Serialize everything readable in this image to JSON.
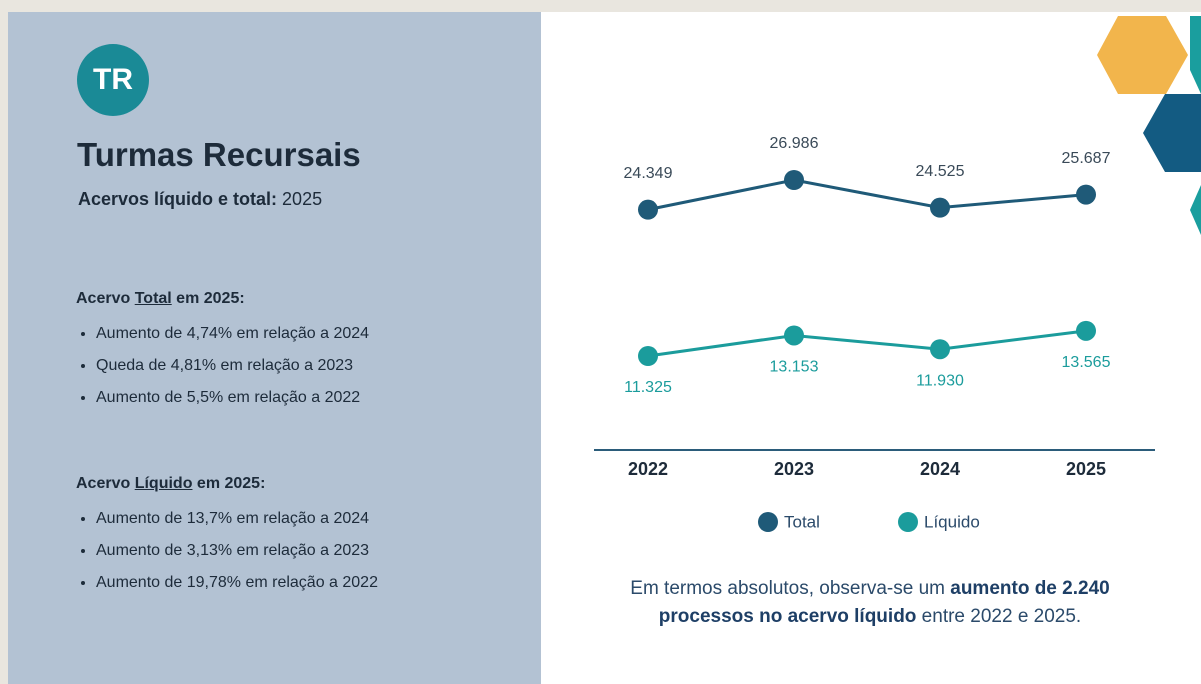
{
  "badge": "TR",
  "title": "Turmas Recursais",
  "subtitle": {
    "label": "Acervos líquido e total:",
    "year": "2025"
  },
  "sections": [
    {
      "heading": [
        "Acervo ",
        "Total",
        " em 2025:"
      ],
      "items": [
        "Aumento de 4,74% em relação a 2024",
        "Queda de 4,81% em relação a 2023",
        "Aumento de 5,5% em relação a 2022"
      ]
    },
    {
      "heading": [
        "Acervo ",
        "Líquido",
        " em 2025:"
      ],
      "items": [
        "Aumento de 13,7% em relação a 2024",
        "Aumento de 3,13% em relação a 2023",
        "Aumento de 19,78% em relação a 2022"
      ]
    }
  ],
  "chart_data": {
    "type": "line",
    "categories": [
      "2022",
      "2023",
      "2024",
      "2025"
    ],
    "series": [
      {
        "name": "Total",
        "color": "#1f5a78",
        "values": [
          24349,
          26986,
          24525,
          25687
        ],
        "value_labels": [
          "24.349",
          "26.986",
          "24.525",
          "25.687"
        ]
      },
      {
        "name": "Líquido",
        "color": "#1b9c9c",
        "values": [
          11325,
          13153,
          11930,
          13565
        ],
        "value_labels": [
          "11.325",
          "13.153",
          "11.930",
          "13.565"
        ]
      }
    ]
  },
  "note": [
    "Em termos absolutos, observa-se um ",
    "aumento de 2.240 processos no acervo líquido",
    " entre 2022 e 2025."
  ]
}
